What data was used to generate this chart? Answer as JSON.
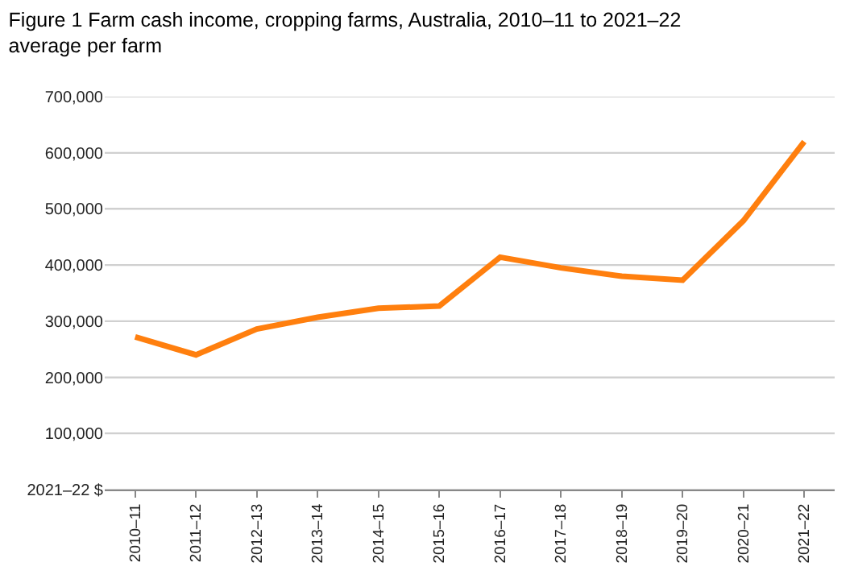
{
  "chart_data": {
    "type": "line",
    "title": "Figure 1 Farm cash income, cropping farms, Australia, 2010–11 to 2021–22",
    "subtitle": "average per farm",
    "categories": [
      "2010–11",
      "2011–12",
      "2012–13",
      "2013–14",
      "2014–15",
      "2015–16",
      "2016–17",
      "2017–18",
      "2018–19",
      "2019–20",
      "2020–21",
      "2021–22"
    ],
    "series": [
      {
        "color": "#ff7f0e",
        "values": [
          272000,
          240000,
          286000,
          307000,
          323000,
          327000,
          414000,
          395000,
          380000,
          373000,
          479000,
          620000
        ]
      }
    ],
    "ylim": [
      0,
      700000
    ],
    "yticks": [
      {
        "value": 0,
        "label": "2021–22 $"
      },
      {
        "value": 100000,
        "label": "100,000"
      },
      {
        "value": 200000,
        "label": "200,000"
      },
      {
        "value": 300000,
        "label": "300,000"
      },
      {
        "value": 400000,
        "label": "400,000"
      },
      {
        "value": 500000,
        "label": "500,000"
      },
      {
        "value": 600000,
        "label": "600,000"
      },
      {
        "value": 700000,
        "label": "700,000"
      }
    ],
    "grid": "y",
    "legend": false,
    "marker": "none",
    "line_style": "solid"
  }
}
